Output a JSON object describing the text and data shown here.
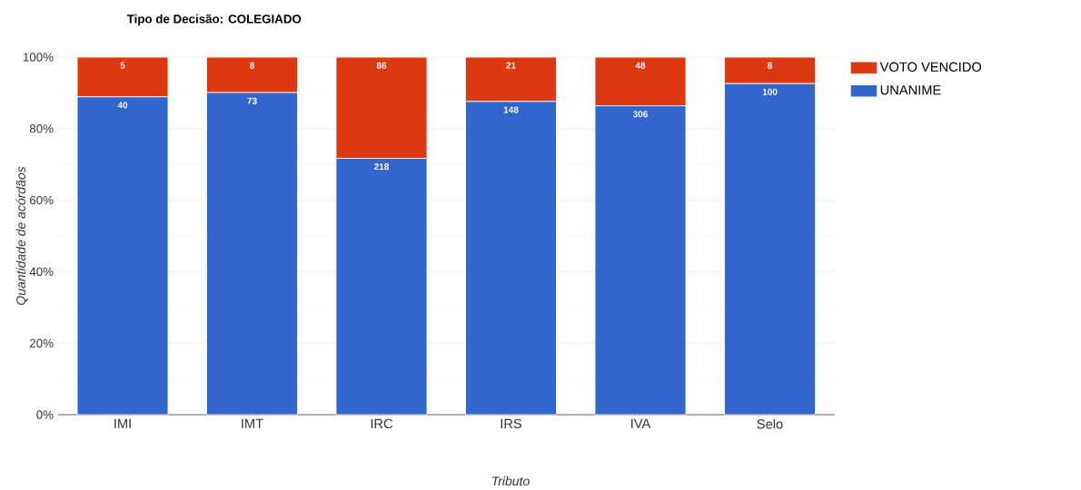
{
  "chart_data": {
    "type": "bar",
    "title": "Tipo de Decisão: COLEGIADO",
    "xlabel": "Tributo",
    "ylabel": "Quantidade de acórdãos",
    "categories": [
      "IMI",
      "IMT",
      "IRC",
      "IRS",
      "IVA",
      "Selo"
    ],
    "stacked": true,
    "series": [
      {
        "name": "UNANIME",
        "color": "#3366cc",
        "values": [
          88.9,
          90.1,
          71.7,
          87.6,
          86.4,
          92.6
        ]
      },
      {
        "name": "VOTO VENCIDO",
        "color": "#dc3912",
        "values": [
          11.1,
          9.9,
          28.3,
          12.4,
          13.6,
          7.4
        ]
      }
    ],
    "annotations": [
      {
        "text": "40",
        "x": "IMI",
        "y": 88.9
      },
      {
        "text": "73",
        "x": "IMT",
        "y": 90.1
      },
      {
        "text": "218",
        "x": "IRC",
        "y": 71.7
      },
      {
        "text": "148",
        "x": "IRS",
        "y": 87.6
      },
      {
        "text": "306",
        "x": "IVA",
        "y": 86.4
      },
      {
        "text": "100",
        "x": "Selo",
        "y": 92.6
      },
      {
        "text": "5",
        "x": "IMI",
        "y": 100
      },
      {
        "text": "8",
        "x": "IMT",
        "y": 100
      },
      {
        "text": "86",
        "x": "IRC",
        "y": 100
      },
      {
        "text": "21",
        "x": "IRS",
        "y": 100
      },
      {
        "text": "48",
        "x": "IVA",
        "y": 100
      },
      {
        "text": "8",
        "x": "Selo",
        "y": 100
      }
    ],
    "ylim": [
      0,
      100
    ],
    "yticks": [
      {
        "value": 0,
        "label": "0%"
      },
      {
        "value": 20,
        "label": "20%"
      },
      {
        "value": 40,
        "label": "40%"
      },
      {
        "value": 60,
        "label": "60%"
      },
      {
        "value": 80,
        "label": "80%"
      },
      {
        "value": 100,
        "label": "100%"
      }
    ],
    "grid": "y",
    "legend": "top right"
  }
}
